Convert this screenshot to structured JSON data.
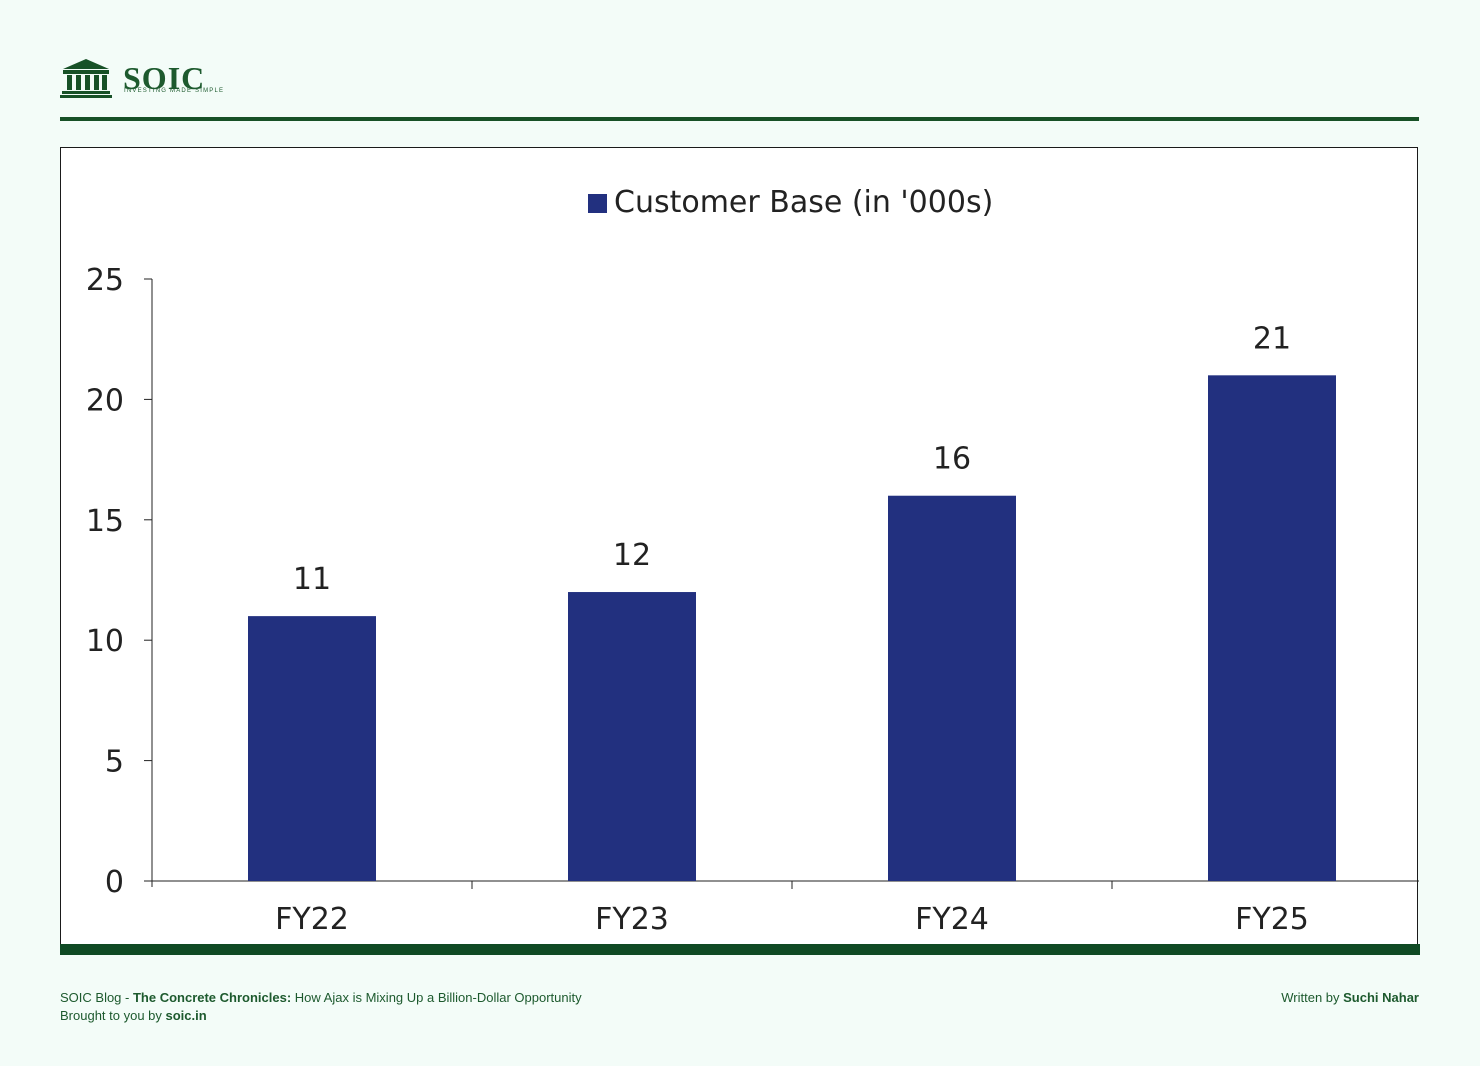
{
  "brand": {
    "name": "SOIC",
    "tagline": "INVESTING MADE SIMPLE",
    "color": "#175127"
  },
  "chart_data": {
    "type": "bar",
    "categories": [
      "FY22",
      "FY23",
      "FY24",
      "FY25"
    ],
    "series": [
      {
        "name": "Customer Base (in '000s)",
        "values": [
          11,
          12,
          16,
          21
        ],
        "color": "#22307f"
      }
    ],
    "data_labels": [
      "11",
      "12",
      "16",
      "21"
    ],
    "yticks": [
      0,
      5,
      10,
      15,
      20,
      25
    ],
    "ylim": [
      0,
      25
    ],
    "legend_position": "top-center",
    "grid": false
  },
  "footer": {
    "blog_prefix": "SOIC Blog - ",
    "blog_title": "The Concrete Chronicles:",
    "blog_subtitle": " How Ajax is Mixing Up a Billion-Dollar Opportunity",
    "brought_prefix": "Brought to you by ",
    "site": "soic.in",
    "written_prefix": "Written by ",
    "author": "Suchi Nahar"
  }
}
